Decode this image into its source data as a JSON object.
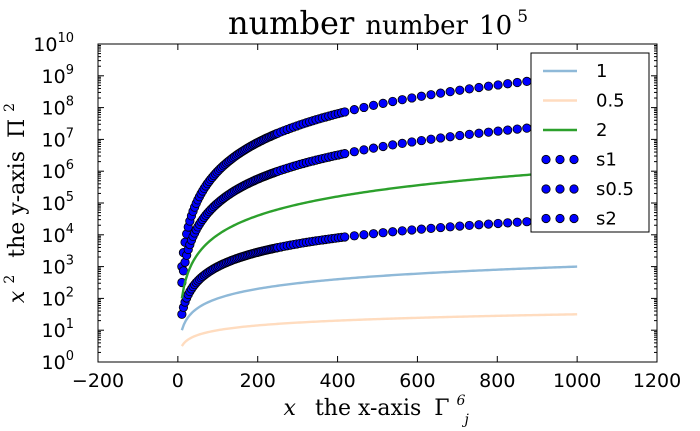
{
  "chart_data": {
    "type": "line",
    "title": {
      "main": "number",
      "sub": "number",
      "power_base": "10",
      "power_exp": "5"
    },
    "xlabel": {
      "var": "x",
      "text": "the x-axis",
      "sym": "Γ",
      "sup": "6",
      "sub": "j"
    },
    "ylabel": {
      "var": "x",
      "var_sup": "2",
      "text": "the y-axis",
      "sym": "Π",
      "sym_sup": "2"
    },
    "x_ticks": [
      "−200",
      "0",
      "200",
      "400",
      "600",
      "800",
      "1000",
      "1200"
    ],
    "x_tick_values": [
      -200,
      0,
      200,
      400,
      600,
      800,
      1000,
      1200
    ],
    "y_tick_exponents": [
      0,
      1,
      2,
      3,
      4,
      5,
      6,
      7,
      8,
      9,
      10
    ],
    "y_tick_base": "10",
    "xlim": [
      -200,
      1200
    ],
    "ylim": [
      1,
      10000000000
    ],
    "yscale": "log",
    "legend_position": "upper right",
    "series": [
      {
        "name": "1",
        "kind": "line",
        "power": 1,
        "color": "#8fb9d8",
        "x_range": [
          10,
          1000
        ]
      },
      {
        "name": "0.5",
        "kind": "line",
        "power": 0.5,
        "color": "#ffdcbf",
        "x_range": [
          10,
          1000
        ]
      },
      {
        "name": "2",
        "kind": "line",
        "power": 2,
        "color": "#2ca02c",
        "x_range": [
          10,
          1000
        ]
      },
      {
        "name": "s1",
        "kind": "scatter",
        "power": 1.5,
        "color": "#0000ff",
        "x_range": [
          10,
          1000
        ]
      },
      {
        "name": "s0.5",
        "kind": "scatter",
        "power": 3,
        "color": "#0000ff",
        "x_range": [
          10,
          1000
        ]
      },
      {
        "name": "s2",
        "kind": "scatter",
        "power": 2.5,
        "color": "#0000ff",
        "x_range": [
          10,
          1000
        ]
      }
    ]
  }
}
